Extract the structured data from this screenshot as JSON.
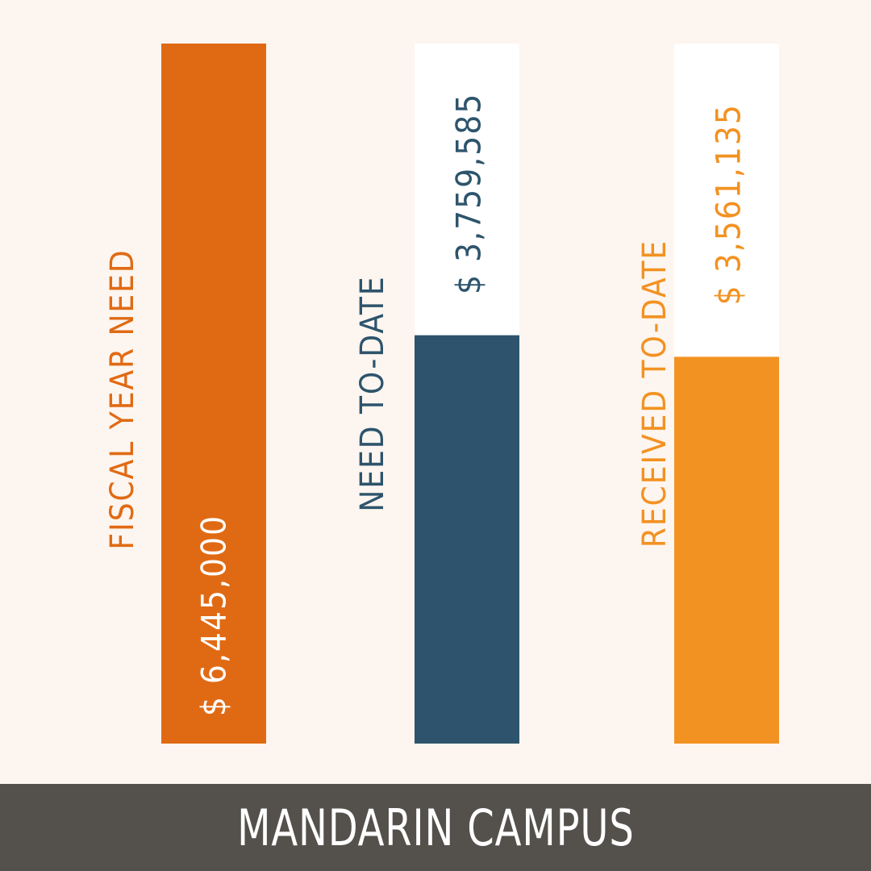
{
  "chart_data": {
    "type": "bar",
    "orientation": "vertical",
    "title": "MANDARIN CAMPUS",
    "categories": [
      "FISCAL YEAR NEED",
      "NEED TO-DATE",
      "RECEIVED TO-DATE"
    ],
    "values": [
      6445000,
      3759585,
      3561135
    ],
    "value_labels": [
      "$ 6,445,000",
      "$ 3,759,585",
      "$ 3,561,135"
    ],
    "ylim": [
      0,
      6445000
    ],
    "colors": [
      "#e06a14",
      "#2d546c",
      "#f29222"
    ],
    "track_color": "#ffffff",
    "value_label_colors": [
      "#ffffff",
      "#2d546c",
      "#f29222"
    ],
    "grid": false,
    "legend": "none"
  },
  "footer": {
    "title": "MANDARIN CAMPUS"
  },
  "colors": {
    "background": "#fdf5ef",
    "footer": "#54514c"
  }
}
